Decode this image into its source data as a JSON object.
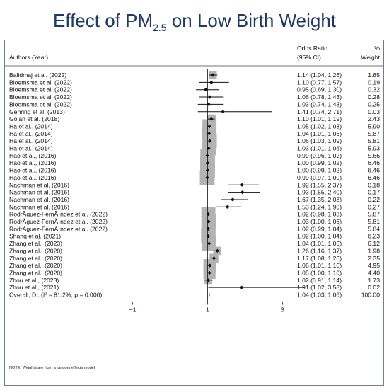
{
  "title": {
    "main": "Effect of PM",
    "sub": "2.5",
    "tail": " on Low Birth Weight"
  },
  "chart_data": {
    "type": "forest",
    "headers": {
      "authors": "Authors (Year)",
      "or_line1": "Odds Ratio",
      "or_line2": "(95% CI)",
      "weight_line1": "%",
      "weight_line2": "Weight"
    },
    "xticks": [
      -1,
      1,
      3
    ],
    "xlim": [
      -2.9,
      4.9
    ],
    "reference_line": 1,
    "overall_line": 1.04,
    "studies": [
      {
        "label": "Balidmaj et al. (2022)",
        "or": 1.14,
        "lo": 1.04,
        "hi": 1.26,
        "ci": "1.14 (1.04, 1.26)",
        "weight": "1.85"
      },
      {
        "label": "Bloemsma et al. (2022)",
        "or": 1.1,
        "lo": 0.77,
        "hi": 1.57,
        "ci": "1.10 (0.77, 1.57)",
        "weight": "0.19"
      },
      {
        "label": "Bloemsma et al. (2022)",
        "or": 0.95,
        "lo": 0.69,
        "hi": 1.3,
        "ci": "0.95 (0.69, 1.30)",
        "weight": "0.32"
      },
      {
        "label": "Bloemsma et al. (2022)",
        "or": 1.06,
        "lo": 0.78,
        "hi": 1.43,
        "ci": "1.06 (0.78, 1.43)",
        "weight": "0.28"
      },
      {
        "label": "Bloemsma et al. (2022)",
        "or": 1.03,
        "lo": 0.74,
        "hi": 1.43,
        "ci": "1.03 (0.74, 1.43)",
        "weight": "0.25"
      },
      {
        "label": "Gehring et al. (2013)",
        "or": 1.41,
        "lo": 0.74,
        "hi": 2.71,
        "ci": "1.41 (0.74, 2.71)",
        "weight": "0.03"
      },
      {
        "label": "Golan et al. (2018)",
        "or": 1.1,
        "lo": 1.01,
        "hi": 1.19,
        "ci": "1.10 (1.01, 1.19)",
        "weight": "2.43"
      },
      {
        "label": "Ha et al.,  (2014)",
        "or": 1.05,
        "lo": 1.02,
        "hi": 1.08,
        "ci": "1.05 (1.02, 1.08)",
        "weight": "5.90"
      },
      {
        "label": "Ha et al.,  (2014)",
        "or": 1.04,
        "lo": 1.01,
        "hi": 1.06,
        "ci": "1.04 (1.01, 1.06)",
        "weight": "5.87"
      },
      {
        "label": "Ha et al.,  (2014)",
        "or": 1.06,
        "lo": 1.03,
        "hi": 1.09,
        "ci": "1.06 (1.03, 1.09)",
        "weight": "5.81"
      },
      {
        "label": "Ha et al.,  (2014)",
        "or": 1.03,
        "lo": 1.01,
        "hi": 1.06,
        "ci": "1.03 (1.01, 1.06)",
        "weight": "5.93"
      },
      {
        "label": "Hao et al., (2016)",
        "or": 0.99,
        "lo": 0.96,
        "hi": 1.02,
        "ci": "0.99 (0.96, 1.02)",
        "weight": "5.66"
      },
      {
        "label": "Hao et al., (2016)",
        "or": 1.0,
        "lo": 0.99,
        "hi": 1.02,
        "ci": "1.00 (0.99, 1.02)",
        "weight": "6.46"
      },
      {
        "label": "Hao et al., (2016)",
        "or": 1.0,
        "lo": 0.99,
        "hi": 1.02,
        "ci": "1.00 (0.99, 1.02)",
        "weight": "6.46"
      },
      {
        "label": "Hao et al., (2016)",
        "or": 0.99,
        "lo": 0.97,
        "hi": 1.0,
        "ci": "0.99 (0.97, 1.00)",
        "weight": "6.46"
      },
      {
        "label": "Nachman et al. (2016)",
        "or": 1.92,
        "lo": 1.55,
        "hi": 2.37,
        "ci": "1.92 (1.55, 2.37)",
        "weight": "0.18"
      },
      {
        "label": "Nachman et al. (2016)",
        "or": 1.93,
        "lo": 1.55,
        "hi": 2.4,
        "ci": "1.93 (1.55, 2.40)",
        "weight": "0.17"
      },
      {
        "label": "Nachman et al. (2016)",
        "or": 1.67,
        "lo": 1.35,
        "hi": 2.08,
        "ci": "1.67 (1.35, 2.08)",
        "weight": "0.22"
      },
      {
        "label": "Nachman et al. (2016)",
        "or": 1.53,
        "lo": 1.24,
        "hi": 1.9,
        "ci": "1.53 (1.24, 1.90)",
        "weight": "0.27"
      },
      {
        "label": "RodrÃguez-FernÃ¡ndez et al. (2022)",
        "or": 1.02,
        "lo": 0.98,
        "hi": 1.03,
        "ci": "1.02 (0.98, 1.03)",
        "weight": "5.87"
      },
      {
        "label": "RodrÃguez-FernÃ¡ndez et al. (2022)",
        "or": 1.03,
        "lo": 1.0,
        "hi": 1.06,
        "ci": "1.03 (1.00, 1.06)",
        "weight": "5.81"
      },
      {
        "label": "RodrÃguez-FernÃ¡ndez et al. (2022)",
        "or": 1.02,
        "lo": 0.99,
        "hi": 1.04,
        "ci": "1.02 (0.99, 1.04)",
        "weight": "5.84"
      },
      {
        "label": "Shang et al. (2021)",
        "or": 1.02,
        "lo": 1.0,
        "hi": 1.04,
        "ci": "1.02 (1.00, 1.04)",
        "weight": "6.23"
      },
      {
        "label": "Zhang et al., (2023)",
        "or": 1.04,
        "lo": 1.01,
        "hi": 1.06,
        "ci": "1.04 (1.01, 1.06)",
        "weight": "6.12"
      },
      {
        "label": "Zhang et al., (2020)",
        "or": 1.26,
        "lo": 1.16,
        "hi": 1.37,
        "ci": "1.26 (1.16, 1.37)",
        "weight": "1.98"
      },
      {
        "label": "Zhang et al., (2020)",
        "or": 1.17,
        "lo": 1.08,
        "hi": 1.26,
        "ci": "1.17 (1.08, 1.26)",
        "weight": "2.35"
      },
      {
        "label": "Zhang et al., (2020)",
        "or": 1.06,
        "lo": 1.01,
        "hi": 1.1,
        "ci": "1.06 (1.01, 1.10)",
        "weight": "4.95"
      },
      {
        "label": "Zhang et al., (2020)",
        "or": 1.05,
        "lo": 1.0,
        "hi": 1.1,
        "ci": "1.05 (1.00, 1.10)",
        "weight": "4.40"
      },
      {
        "label": "Zhou et al., (2023)",
        "or": 1.02,
        "lo": 0.91,
        "hi": 1.14,
        "ci": "1.02 (0.91, 1.14)",
        "weight": "1.73"
      },
      {
        "label": "Zhou et al., (2021)",
        "or": 1.91,
        "lo": 1.02,
        "hi": 3.58,
        "ci": "1.91 (1.02, 3.58)",
        "weight": "0.02"
      }
    ],
    "overall": {
      "label_pre": "Overall, DL (I",
      "label_sup": "2",
      "label_post": " = 81.2%, p = 0.000)",
      "or": 1.04,
      "lo": 1.03,
      "hi": 1.06,
      "ci": "1.04 (1.03, 1.06)",
      "weight": "100.00"
    },
    "note": "NOTE: Weights are from a random effects model",
    "colors": {
      "box": "#b3b3b3",
      "marker": "#111111",
      "reference": "#111111",
      "overall_line": "#c0392b",
      "diamond": "#1f3a64",
      "title": "#1f3a64"
    }
  }
}
